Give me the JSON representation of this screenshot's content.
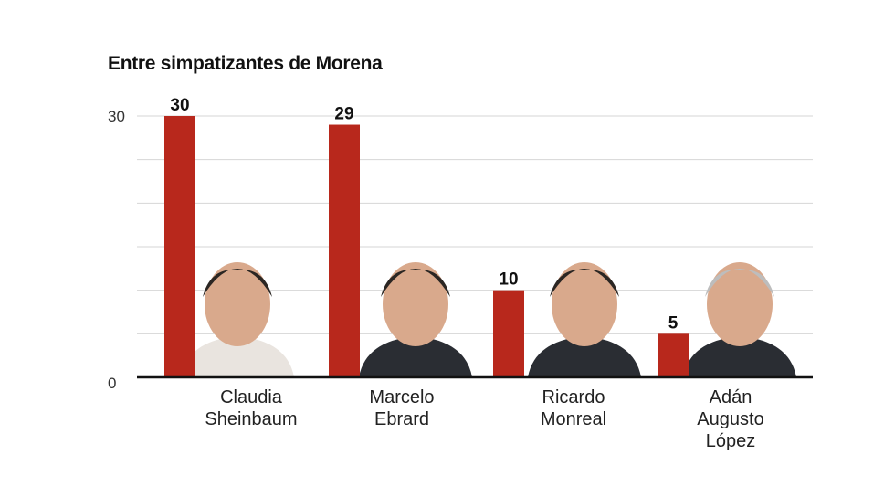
{
  "chart_data": {
    "type": "bar",
    "title": "Entre simpatizantes de Morena",
    "categories": [
      [
        "Claudia",
        "Sheinbaum"
      ],
      [
        "Marcelo",
        "Ebrard"
      ],
      [
        "Ricardo",
        "Monreal"
      ],
      [
        "Adán",
        "Augusto",
        "López"
      ]
    ],
    "values": [
      30,
      29,
      10,
      5
    ],
    "ylim": [
      0,
      30
    ],
    "yticks": [
      "0",
      "30"
    ],
    "grid": true,
    "bar_color": "#b8281c",
    "data_labels": [
      "30",
      "29",
      "10",
      "5"
    ]
  }
}
